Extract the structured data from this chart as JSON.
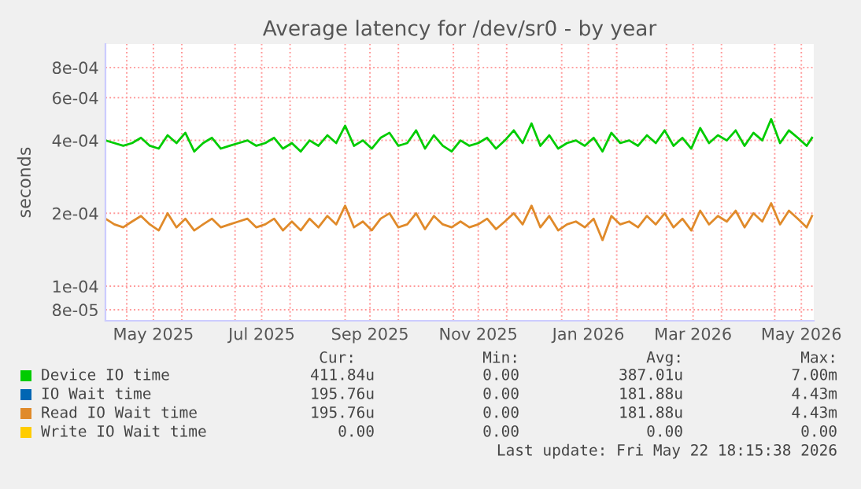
{
  "chart_data": {
    "type": "line",
    "title": "Average latency for /dev/sr0 - by year",
    "ylabel": "seconds",
    "log": "y",
    "grid": true,
    "legend": "bottom",
    "line_style": "solid",
    "marker": "none",
    "ylim": [
      7.2e-05,
      0.001
    ],
    "yticks": [
      {
        "value": 8e-05,
        "label": "8e-05"
      },
      {
        "value": 0.0001,
        "label": "1e-04"
      },
      {
        "value": 0.0002,
        "label": "2e-04"
      },
      {
        "value": 0.0004,
        "label": "4e-04"
      },
      {
        "value": 0.0006,
        "label": "6e-04"
      },
      {
        "value": 0.0008,
        "label": "8e-04"
      }
    ],
    "xlim": [
      "2025-04-19",
      "2026-05-23"
    ],
    "xticks": [
      {
        "value": "2025-05-01",
        "label": null
      },
      {
        "value": "2025-06-01",
        "label": null
      },
      {
        "value": "2025-07-01",
        "label": null
      },
      {
        "value": "2025-08-01",
        "label": null
      },
      {
        "value": "2025-09-01",
        "label": null
      },
      {
        "value": "2025-10-01",
        "label": null
      },
      {
        "value": "2025-11-01",
        "label": null
      },
      {
        "value": "2025-12-01",
        "label": null
      },
      {
        "value": "2026-01-01",
        "label": null
      },
      {
        "value": "2026-02-01",
        "label": null
      },
      {
        "value": "2026-03-01",
        "label": null
      },
      {
        "value": "2026-04-01",
        "label": null
      },
      {
        "value": "2026-05-01",
        "label": null
      },
      {
        "value": "2025-05-16",
        "label": "May 2025"
      },
      {
        "value": "2025-07-16",
        "label": "Jul 2025"
      },
      {
        "value": "2025-09-15",
        "label": "Sep 2025"
      },
      {
        "value": "2025-11-15",
        "label": "Nov 2025"
      },
      {
        "value": "2026-01-16",
        "label": "Jan 2026"
      },
      {
        "value": "2026-03-16",
        "label": "Mar 2026"
      },
      {
        "value": "2026-05-16",
        "label": "May 2026"
      }
    ],
    "x": [
      "2025-04-19",
      "2025-04-24",
      "2025-04-29",
      "2025-05-04",
      "2025-05-09",
      "2025-05-14",
      "2025-05-19",
      "2025-05-24",
      "2025-05-29",
      "2025-06-03",
      "2025-06-08",
      "2025-06-13",
      "2025-06-18",
      "2025-06-23",
      "2025-06-28",
      "2025-07-03",
      "2025-07-08",
      "2025-07-13",
      "2025-07-18",
      "2025-07-23",
      "2025-07-28",
      "2025-08-02",
      "2025-08-07",
      "2025-08-12",
      "2025-08-17",
      "2025-08-22",
      "2025-08-27",
      "2025-09-01",
      "2025-09-06",
      "2025-09-11",
      "2025-09-16",
      "2025-09-21",
      "2025-09-26",
      "2025-10-01",
      "2025-10-06",
      "2025-10-11",
      "2025-10-16",
      "2025-10-21",
      "2025-10-26",
      "2025-10-31",
      "2025-11-05",
      "2025-11-10",
      "2025-11-15",
      "2025-11-20",
      "2025-11-25",
      "2025-11-30",
      "2025-12-05",
      "2025-12-10",
      "2025-12-15",
      "2025-12-20",
      "2025-12-25",
      "2025-12-30",
      "2026-01-04",
      "2026-01-09",
      "2026-01-14",
      "2026-01-19",
      "2026-01-24",
      "2026-01-29",
      "2026-02-03",
      "2026-02-08",
      "2026-02-13",
      "2026-02-18",
      "2026-02-23",
      "2026-02-28",
      "2026-03-05",
      "2026-03-10",
      "2026-03-15",
      "2026-03-20",
      "2026-03-25",
      "2026-03-30",
      "2026-04-04",
      "2026-04-09",
      "2026-04-14",
      "2026-04-19",
      "2026-04-24",
      "2026-04-29",
      "2026-05-04",
      "2026-05-09",
      "2026-05-14",
      "2026-05-19",
      "2026-05-22"
    ],
    "series": [
      {
        "name": "Device IO time",
        "color": "#00cc00",
        "values": [
          0.0004,
          0.00039,
          0.00038,
          0.00039,
          0.00041,
          0.00038,
          0.00037,
          0.00042,
          0.00039,
          0.00043,
          0.00036,
          0.00039,
          0.00041,
          0.00037,
          0.00038,
          0.00039,
          0.0004,
          0.00038,
          0.00039,
          0.00041,
          0.00037,
          0.00039,
          0.00036,
          0.0004,
          0.00038,
          0.00042,
          0.00039,
          0.00046,
          0.00038,
          0.0004,
          0.00037,
          0.00041,
          0.00043,
          0.00038,
          0.00039,
          0.00044,
          0.00037,
          0.00042,
          0.00038,
          0.00036,
          0.0004,
          0.00038,
          0.00039,
          0.00041,
          0.00037,
          0.0004,
          0.00044,
          0.00039,
          0.00047,
          0.00038,
          0.00042,
          0.00037,
          0.00039,
          0.0004,
          0.00038,
          0.00041,
          0.00036,
          0.00043,
          0.00039,
          0.0004,
          0.00038,
          0.00042,
          0.00039,
          0.00044,
          0.00038,
          0.00041,
          0.00037,
          0.00045,
          0.00039,
          0.00042,
          0.0004,
          0.00044,
          0.00038,
          0.00043,
          0.0004,
          0.00049,
          0.00039,
          0.00044,
          0.00041,
          0.00038,
          0.00041
        ]
      },
      {
        "name": "IO Wait time",
        "color": "#0066b3",
        "values": [
          null,
          null,
          null,
          null,
          null,
          null,
          null,
          null,
          null,
          null,
          null,
          null,
          null,
          null,
          null,
          null,
          null,
          null,
          null,
          null,
          null,
          null,
          null,
          null,
          null,
          null,
          null,
          null,
          null,
          null,
          null,
          null,
          null,
          null,
          null,
          null,
          null,
          null,
          null,
          null,
          null,
          null,
          null,
          null,
          null,
          null,
          null,
          null,
          null,
          null,
          null,
          null,
          null,
          null,
          null,
          null,
          null,
          null,
          null,
          null,
          null,
          null,
          null,
          null,
          null,
          null,
          null,
          null,
          null,
          null,
          null,
          null,
          null,
          null,
          null,
          null,
          null,
          null,
          null,
          null,
          null
        ]
      },
      {
        "name": "Read IO Wait time",
        "color": "#e08a2a",
        "values": [
          0.00019,
          0.00018,
          0.000175,
          0.000185,
          0.000195,
          0.00018,
          0.00017,
          0.0002,
          0.000175,
          0.00019,
          0.00017,
          0.00018,
          0.00019,
          0.000175,
          0.00018,
          0.000185,
          0.00019,
          0.000175,
          0.00018,
          0.00019,
          0.00017,
          0.000185,
          0.00017,
          0.00019,
          0.000175,
          0.000195,
          0.00018,
          0.000215,
          0.000175,
          0.000185,
          0.00017,
          0.00019,
          0.0002,
          0.000175,
          0.00018,
          0.0002,
          0.000172,
          0.000195,
          0.00018,
          0.000175,
          0.000185,
          0.000175,
          0.00018,
          0.00019,
          0.000172,
          0.000185,
          0.0002,
          0.00018,
          0.000215,
          0.000175,
          0.000195,
          0.00017,
          0.00018,
          0.000185,
          0.000175,
          0.00019,
          0.000155,
          0.000195,
          0.00018,
          0.000185,
          0.000175,
          0.000195,
          0.00018,
          0.0002,
          0.000175,
          0.00019,
          0.00017,
          0.000205,
          0.00018,
          0.000195,
          0.000185,
          0.000205,
          0.000175,
          0.0002,
          0.000185,
          0.00022,
          0.00018,
          0.000205,
          0.00019,
          0.000175,
          0.000195
        ]
      },
      {
        "name": "Write IO Wait time",
        "color": "#ffcc00",
        "values": [
          null,
          null,
          null,
          null,
          null,
          null,
          null,
          null,
          null,
          null,
          null,
          null,
          null,
          null,
          null,
          null,
          null,
          null,
          null,
          null,
          null,
          null,
          null,
          null,
          null,
          null,
          null,
          null,
          null,
          null,
          null,
          null,
          null,
          null,
          null,
          null,
          null,
          null,
          null,
          null,
          null,
          null,
          null,
          null,
          null,
          null,
          null,
          null,
          null,
          null,
          null,
          null,
          null,
          null,
          null,
          null,
          null,
          null,
          null,
          null,
          null,
          null,
          null,
          null,
          null,
          null,
          null,
          null,
          null,
          null,
          null,
          null,
          null,
          null,
          null,
          null,
          null,
          null,
          null,
          null,
          null
        ]
      }
    ],
    "annotations": [
      "Cur:",
      "Min:",
      "Avg:",
      "Max:",
      "411.84u",
      "0.00",
      "387.01u",
      "7.00m",
      "195.76u",
      "0.00",
      "181.88u",
      "4.43m",
      "195.76u",
      "0.00",
      "181.88u",
      "4.43m",
      "0.00",
      "0.00",
      "0.00",
      "0.00",
      "Last update: Fri May 22 18:15:38 2026"
    ]
  }
}
